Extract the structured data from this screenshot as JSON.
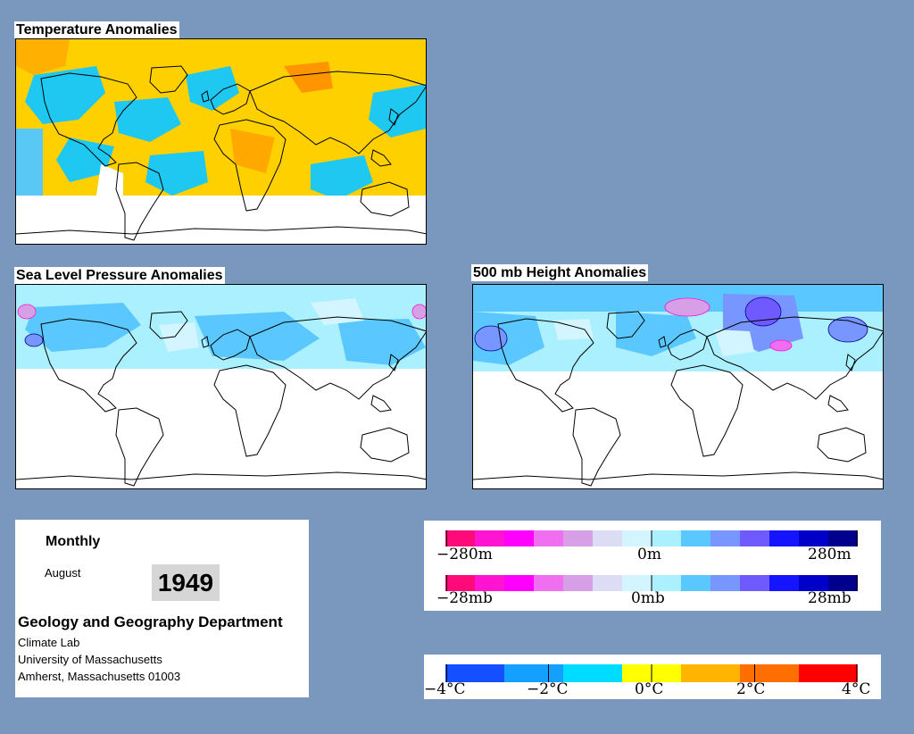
{
  "panels": {
    "temperature": {
      "title": "Temperature Anomalies"
    },
    "slp": {
      "title": "Sea Level Pressure Anomalies"
    },
    "height500": {
      "title": "500 mb Height Anomalies"
    }
  },
  "info": {
    "period": "Monthly",
    "month": "August",
    "year": "1949",
    "department": "Geology and Geography Department",
    "lab": "Climate Lab",
    "university": "University of Massachusetts",
    "address": "Amherst, Massachusetts 01003"
  },
  "legends": {
    "height": {
      "min": "−280m",
      "mid": "0m",
      "max": "280m"
    },
    "pressure": {
      "min": "−28mb",
      "mid": "0mb",
      "max": "28mb"
    },
    "temperature": {
      "labels": [
        "−4°C",
        "−2°C",
        "0°C",
        "2°C",
        "4°C"
      ]
    }
  },
  "colors": {
    "background": "#7a98be",
    "anomaly_scale": [
      "#ff0a78",
      "#ff14d2",
      "#ff00ff",
      "#f06ef0",
      "#d7a0e6",
      "#dcdcf5",
      "#d2f5ff",
      "#aaf0ff",
      "#5ac8ff",
      "#7896ff",
      "#6e5aff",
      "#1414ff",
      "#0000c8",
      "#00008c"
    ],
    "temperature_scale": [
      "#1450ff",
      "#14a0ff",
      "#00dcff",
      "#ffff00",
      "#ffb400",
      "#ff6e00",
      "#ff0000"
    ]
  }
}
